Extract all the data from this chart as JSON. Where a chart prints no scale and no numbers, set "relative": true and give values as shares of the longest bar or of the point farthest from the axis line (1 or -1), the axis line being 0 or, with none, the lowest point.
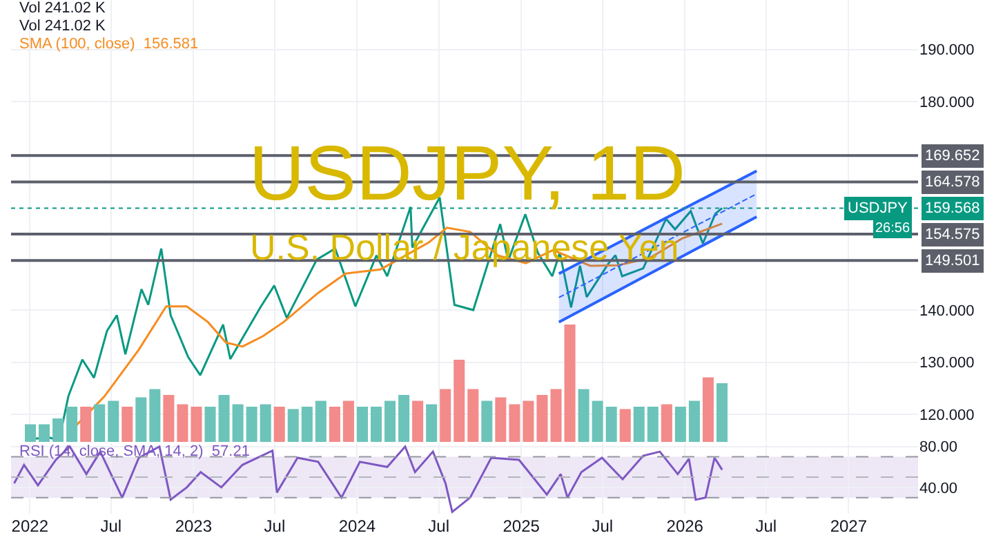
{
  "chart_data": [
    {
      "type": "line",
      "title": "USDJPY, 1D",
      "subtitle": "U.S. Dollar / Japanese Yen",
      "xlim": [
        "2021-11-20",
        "2027-06-05"
      ],
      "xticks": [
        {
          "value": "2022-01-01",
          "label": null
        },
        {
          "value": "2022-07-01",
          "label": null
        },
        {
          "value": "2023-01-01",
          "label": null
        },
        {
          "value": "2023-07-01",
          "label": null
        },
        {
          "value": "2024-01-01",
          "label": null
        },
        {
          "value": "2024-07-01",
          "label": null
        },
        {
          "value": "2025-01-01",
          "label": null
        },
        {
          "value": "2025-07-01",
          "label": null
        },
        {
          "value": "2026-01-01",
          "label": null
        },
        {
          "value": "2026-07-01",
          "label": null
        },
        {
          "value": "2027-01-01",
          "label": null
        }
      ],
      "ylim": [
        114.7,
        199.5
      ],
      "yticks": [
        {
          "value": 120,
          "label": "120.000"
        },
        {
          "value": 130,
          "label": "130.000"
        },
        {
          "value": 140,
          "label": "140.000"
        },
        {
          "value": 180,
          "label": "180.000"
        },
        {
          "value": 190,
          "label": "190.000"
        }
      ],
      "tick_labels": "y",
      "grid": true,
      "legend": "top left",
      "series": [
        {
          "name": "USDJPY",
          "color": "#089981",
          "x": [
            "2022-01-03",
            "2022-02-15",
            "2022-03-07",
            "2022-03-28",
            "2022-04-28",
            "2022-05-24",
            "2022-06-22",
            "2022-07-14",
            "2022-08-02",
            "2022-09-07",
            "2022-09-22",
            "2022-10-21",
            "2022-11-11",
            "2022-12-20",
            "2023-01-16",
            "2023-03-08",
            "2023-03-24",
            "2023-05-30",
            "2023-06-30",
            "2023-07-28",
            "2023-10-03",
            "2023-11-13",
            "2023-12-28",
            "2024-02-13",
            "2024-03-08",
            "2024-04-29",
            "2024-05-03",
            "2024-07-03",
            "2024-08-05",
            "2024-09-16",
            "2024-11-15",
            "2024-12-03",
            "2025-01-10",
            "2025-02-07",
            "2025-03-11",
            "2025-03-28",
            "2025-04-22",
            "2025-05-12",
            "2025-05-27",
            "2025-07-15",
            "2025-07-30",
            "2025-08-14",
            "2025-09-30",
            "2025-11-20",
            "2025-12-10",
            "2026-01-14",
            "2026-02-10",
            "2026-03-10",
            "2026-03-25"
          ],
          "values": [
            115.3,
            115.5,
            115,
            123.5,
            130.5,
            127,
            136,
            139,
            131.5,
            144,
            141,
            151.8,
            139,
            131,
            127.5,
            137.2,
            130.6,
            140.5,
            144.7,
            138.5,
            149.7,
            151.8,
            140.7,
            150.5,
            146.5,
            159.8,
            152,
            161.6,
            141,
            140,
            156.5,
            149.5,
            158.4,
            151,
            146.5,
            151,
            140.5,
            148.5,
            142.5,
            149,
            150.5,
            146.5,
            148,
            157.5,
            155.5,
            159,
            152.8,
            158.5,
            159.568
          ]
        },
        {
          "name": "SMA (100, close)",
          "color": "#f68c1f",
          "x": [
            "2022-04-08",
            "2022-06-16",
            "2022-09-01",
            "2022-11-01",
            "2022-12-17",
            "2023-02-02",
            "2023-03-14",
            "2023-04-20",
            "2023-06-05",
            "2023-07-21",
            "2023-10-06",
            "2023-12-06",
            "2024-02-22",
            "2024-04-08",
            "2024-06-09",
            "2024-07-19",
            "2024-09-09",
            "2024-11-10",
            "2025-01-11",
            "2025-03-13",
            "2025-06-04",
            "2025-08-05",
            "2025-10-15",
            "2025-12-25",
            "2026-03-25"
          ],
          "values": [
            117.3,
            123.4,
            132.4,
            140.7,
            140.7,
            137.7,
            133.8,
            133,
            135,
            137.7,
            143.3,
            147,
            147.8,
            150,
            153,
            155.8,
            155,
            150.5,
            149,
            151.5,
            148.5,
            148.6,
            150,
            153.7,
            156.581
          ]
        },
        {
          "type": "line",
          "color": "#2962ff",
          "line_style": "dashed",
          "x": [
            "2025-03-26",
            "2026-06-10"
          ],
          "values": [
            142.4,
            162.3
          ],
          "lower": [
            137.7,
            157.9
          ],
          "upper": [
            147,
            166.7
          ]
        }
      ],
      "ref_lines": [
        {
          "axis": "y",
          "value": 169.652,
          "label": "169.652",
          "color": "#5d606b"
        },
        {
          "axis": "y",
          "value": 164.578,
          "label": "164.578",
          "color": "#5d606b"
        },
        {
          "axis": "y",
          "value": 154.575,
          "label": "154.575",
          "color": "#5d606b"
        },
        {
          "axis": "y",
          "value": 149.501,
          "label": "149.501",
          "color": "#5d606b"
        },
        {
          "axis": "y",
          "value": 159.568,
          "label": "159.568",
          "color": "#089981",
          "line_style": "dotted"
        }
      ],
      "annotations": [
        "Vol 241.02 K",
        "Vol 241.02 K",
        "156.581",
        "26:56"
      ]
    },
    {
      "type": "bar",
      "relative": true,
      "tick_labels": false,
      "categories": [
        null,
        null,
        null,
        null,
        null,
        null,
        null,
        null,
        null,
        null,
        null,
        null,
        null,
        null,
        null,
        null,
        null,
        null,
        null,
        null,
        null,
        null,
        null,
        null,
        null,
        null,
        null,
        null,
        null,
        null,
        null,
        null,
        null,
        null,
        null,
        null,
        null,
        null,
        null,
        null,
        null,
        null,
        null,
        null,
        null,
        null,
        null,
        null,
        null,
        null,
        null
      ],
      "values": [
        0.15,
        0.15,
        0.2,
        0.3,
        0.3,
        0.32,
        0.35,
        0.3,
        0.38,
        0.45,
        0.4,
        0.32,
        0.3,
        0.3,
        0.4,
        0.32,
        0.3,
        0.32,
        0.3,
        0.28,
        0.3,
        0.35,
        0.3,
        0.35,
        0.3,
        0.3,
        0.35,
        0.4,
        0.35,
        0.32,
        0.45,
        0.7,
        0.45,
        0.35,
        0.38,
        0.32,
        0.35,
        0.4,
        0.45,
        1,
        0.45,
        0.35,
        0.3,
        0.28,
        0.3,
        0.3,
        0.32,
        0.3,
        0.35,
        0.55,
        0.5
      ],
      "colors": [
        "#6cc3b9",
        "#6cc3b9",
        "#6cc3b9",
        "#6cc3b9",
        "#f28b89",
        "#6cc3b9",
        "#6cc3b9",
        "#f28b89",
        "#6cc3b9",
        "#6cc3b9",
        "#f28b89",
        "#f28b89",
        "#f28b89",
        "#6cc3b9",
        "#6cc3b9",
        "#6cc3b9",
        "#6cc3b9",
        "#6cc3b9",
        "#f28b89",
        "#6cc3b9",
        "#6cc3b9",
        "#6cc3b9",
        "#f28b89",
        "#f28b89",
        "#6cc3b9",
        "#6cc3b9",
        "#6cc3b9",
        "#6cc3b9",
        "#f28b89",
        "#6cc3b9",
        "#f28b89",
        "#f28b89",
        "#f28b89",
        "#6cc3b9",
        "#f28b89",
        "#f28b89",
        "#f28b89",
        "#f28b89",
        "#f28b89",
        "#f28b89",
        "#6cc3b9",
        "#6cc3b9",
        "#6cc3b9",
        "#f28b89",
        "#6cc3b9",
        "#6cc3b9",
        "#f28b89",
        "#6cc3b9",
        "#6cc3b9",
        "#f28b89",
        "#6cc3b9"
      ]
    },
    {
      "type": "line",
      "legend": "top left",
      "grid": true,
      "xlim": [
        "2021-11-20",
        "2027-06-05"
      ],
      "xticks": [
        {
          "value": "2022-01-01",
          "label": "2022"
        },
        {
          "value": "2022-07-01",
          "label": "Jul"
        },
        {
          "value": "2023-01-01",
          "label": "2023"
        },
        {
          "value": "2023-07-01",
          "label": "Jul"
        },
        {
          "value": "2024-01-01",
          "label": "2024"
        },
        {
          "value": "2024-07-01",
          "label": "Jul"
        },
        {
          "value": "2025-01-01",
          "label": "2025"
        },
        {
          "value": "2025-07-01",
          "label": "Jul"
        },
        {
          "value": "2026-01-01",
          "label": "2026"
        },
        {
          "value": "2026-07-01",
          "label": "Jul"
        },
        {
          "value": "2027-01-01",
          "label": "2027"
        }
      ],
      "ylim": [
        14.2,
        83.2
      ],
      "yticks": [
        {
          "value": 40,
          "label": "40.00"
        },
        {
          "value": 80,
          "label": "80.00"
        }
      ],
      "series": [
        {
          "name": "RSI (14, close, SMA, 14, 2)",
          "color": "#7e57c2",
          "x": [
            "2021-11-27",
            "2021-12-19",
            "2022-01-19",
            "2022-02-28",
            "2022-03-31",
            "2022-05-07",
            "2022-06-07",
            "2022-07-26",
            "2022-09-01",
            "2022-10-17",
            "2022-11-11",
            "2022-12-17",
            "2023-01-17",
            "2023-03-04",
            "2023-04-20",
            "2023-06-26",
            "2023-07-06",
            "2023-08-21",
            "2023-10-06",
            "2023-11-27",
            "2024-01-07",
            "2024-03-08",
            "2024-04-17",
            "2024-05-09",
            "2024-06-18",
            "2024-07-16",
            "2024-07-31",
            "2024-09-09",
            "2024-10-26",
            "2024-12-27",
            "2025-02-27",
            "2025-03-30",
            "2025-04-14",
            "2025-05-15",
            "2025-06-30",
            "2025-08-15",
            "2025-09-30",
            "2025-11-06",
            "2025-12-16",
            "2026-01-10",
            "2026-01-25",
            "2026-02-16",
            "2026-03-08",
            "2026-03-25"
          ],
          "values": [
            44,
            62,
            42,
            67,
            80,
            53,
            75,
            30,
            69,
            80,
            28,
            40,
            55,
            40,
            62,
            76,
            35,
            69,
            65,
            30,
            65,
            60,
            80,
            55,
            75,
            44,
            16,
            30,
            69,
            67,
            33,
            53,
            30,
            55,
            69,
            48,
            71,
            75,
            53,
            68,
            28,
            30,
            69,
            57.21
          ]
        }
      ],
      "ref_lines": [
        {
          "axis": "y",
          "value": 70,
          "color": "#9598a1",
          "line_style": "dashed"
        },
        {
          "axis": "y",
          "value": 50,
          "color": "#b2b5be",
          "line_style": "dashed"
        },
        {
          "axis": "y",
          "value": 30,
          "color": "#9598a1",
          "line_style": "dashed"
        }
      ],
      "bands": [
        {
          "axis": "y",
          "from": 30,
          "to": 70,
          "color": "#ede7f6"
        }
      ],
      "annotations": [
        "57.21"
      ]
    }
  ]
}
